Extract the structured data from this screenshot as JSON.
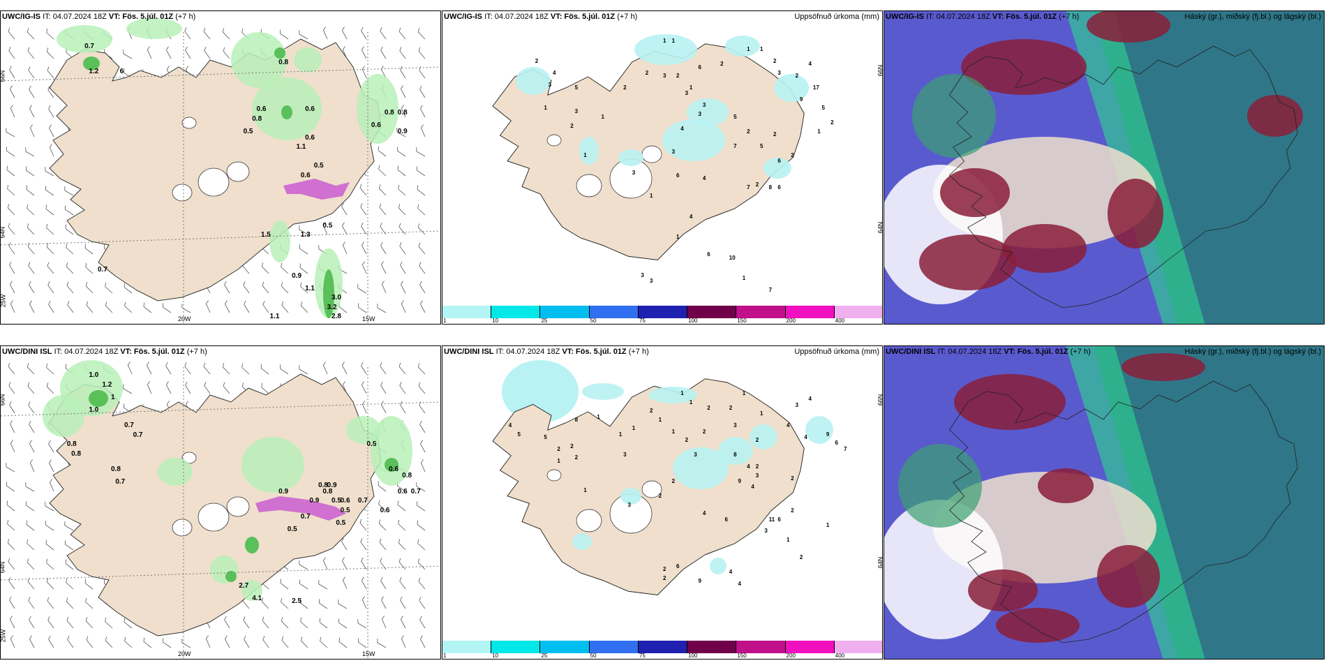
{
  "colors": {
    "land": "#efdfcc",
    "sea": "#ffffff",
    "precip_light": "#b9f0b9",
    "precip_mid": "#5ac05a",
    "precip_dark": "#0f6e2a",
    "snow": "#d070d0",
    "bar_blue": "#5a5acf",
    "cloud_red": "#8a1f3a",
    "cloud_teal": "#2a7a80",
    "cloud_green": "#2fcf8f"
  },
  "rows": [
    {
      "model": "UWC/IG-IS",
      "wind_panel": {
        "title_model": "UWC/IG-IS",
        "title_it": "IT: 04.07.2024 18Z",
        "title_vt": "VT: Fös. 5.júl. 01Z",
        "title_lead": "(+7 h)",
        "lon_labels": [
          "20W",
          "15W"
        ],
        "lat_labels": [
          "66N",
          "64N",
          "25W"
        ],
        "values": [
          {
            "t": "0.7",
            "x": 0.19,
            "y": 0.1
          },
          {
            "t": "1.2",
            "x": 0.2,
            "y": 0.18
          },
          {
            "t": "6",
            "x": 0.27,
            "y": 0.18
          },
          {
            "t": "0.8",
            "x": 0.63,
            "y": 0.15
          },
          {
            "t": "0.6",
            "x": 0.58,
            "y": 0.3
          },
          {
            "t": "0.8",
            "x": 0.57,
            "y": 0.33
          },
          {
            "t": "0.5",
            "x": 0.55,
            "y": 0.37
          },
          {
            "t": "0.6",
            "x": 0.69,
            "y": 0.3
          },
          {
            "t": "0.6",
            "x": 0.69,
            "y": 0.39
          },
          {
            "t": "1.1",
            "x": 0.67,
            "y": 0.42
          },
          {
            "t": "0.5",
            "x": 0.71,
            "y": 0.48
          },
          {
            "t": "0.6",
            "x": 0.68,
            "y": 0.51
          },
          {
            "t": "0.8",
            "x": 0.87,
            "y": 0.31
          },
          {
            "t": "0.8",
            "x": 0.9,
            "y": 0.31
          },
          {
            "t": "0.6",
            "x": 0.84,
            "y": 0.35
          },
          {
            "t": "0.9",
            "x": 0.9,
            "y": 0.37
          },
          {
            "t": "0.5",
            "x": 0.73,
            "y": 0.67
          },
          {
            "t": "1.5",
            "x": 0.59,
            "y": 0.7
          },
          {
            "t": "1.3",
            "x": 0.68,
            "y": 0.7
          },
          {
            "t": "0.7",
            "x": 0.22,
            "y": 0.81
          },
          {
            "t": "0.9",
            "x": 0.66,
            "y": 0.83
          },
          {
            "t": "1.1",
            "x": 0.69,
            "y": 0.87
          },
          {
            "t": "3.0",
            "x": 0.75,
            "y": 0.9
          },
          {
            "t": "3.2",
            "x": 0.74,
            "y": 0.93
          },
          {
            "t": "2.8",
            "x": 0.75,
            "y": 0.96
          },
          {
            "t": "1.1",
            "x": 0.61,
            "y": 0.96
          }
        ]
      },
      "precip_panel": {
        "title_model": "UWC/IG-IS",
        "title_it": "IT: 04.07.2024 18Z",
        "title_vt": "VT: Fös. 5.júl. 01Z",
        "title_lead": "(+7 h)",
        "right_title": "Uppsöfnuð úrkoma (mm)",
        "colorbar_labels": [
          "1",
          "10",
          "25",
          "50",
          "75",
          "100",
          "150",
          "200",
          "400"
        ],
        "colorbar_colors": [
          "#b3f5f5",
          "#00e8e8",
          "#00bff0",
          "#3070f0",
          "#2020b0",
          "#70004a",
          "#c0108a",
          "#f010c0",
          "#f0b0f0"
        ],
        "values": [
          {
            "t": "1",
            "x": 0.5,
            "y": 0.09
          },
          {
            "t": "1",
            "x": 0.52,
            "y": 0.09
          },
          {
            "t": "2",
            "x": 0.21,
            "y": 0.16
          },
          {
            "t": "4",
            "x": 0.25,
            "y": 0.2
          },
          {
            "t": "5",
            "x": 0.3,
            "y": 0.25
          },
          {
            "t": "3",
            "x": 0.24,
            "y": 0.24
          },
          {
            "t": "1",
            "x": 0.23,
            "y": 0.32
          },
          {
            "t": "1",
            "x": 0.36,
            "y": 0.35
          },
          {
            "t": "2",
            "x": 0.29,
            "y": 0.38
          },
          {
            "t": "3",
            "x": 0.3,
            "y": 0.33
          },
          {
            "t": "2",
            "x": 0.41,
            "y": 0.25
          },
          {
            "t": "2",
            "x": 0.46,
            "y": 0.2
          },
          {
            "t": "3",
            "x": 0.5,
            "y": 0.21
          },
          {
            "t": "2",
            "x": 0.53,
            "y": 0.21
          },
          {
            "t": "1",
            "x": 0.56,
            "y": 0.25
          },
          {
            "t": "6",
            "x": 0.58,
            "y": 0.18
          },
          {
            "t": "2",
            "x": 0.63,
            "y": 0.17
          },
          {
            "t": "1",
            "x": 0.69,
            "y": 0.12
          },
          {
            "t": "1",
            "x": 0.72,
            "y": 0.12
          },
          {
            "t": "2",
            "x": 0.75,
            "y": 0.16
          },
          {
            "t": "3",
            "x": 0.76,
            "y": 0.2
          },
          {
            "t": "2",
            "x": 0.8,
            "y": 0.21
          },
          {
            "t": "4",
            "x": 0.83,
            "y": 0.17
          },
          {
            "t": "17",
            "x": 0.84,
            "y": 0.25
          },
          {
            "t": "9",
            "x": 0.81,
            "y": 0.29
          },
          {
            "t": "5",
            "x": 0.86,
            "y": 0.32
          },
          {
            "t": "2",
            "x": 0.88,
            "y": 0.37
          },
          {
            "t": "1",
            "x": 0.85,
            "y": 0.4
          },
          {
            "t": "2",
            "x": 0.79,
            "y": 0.48
          },
          {
            "t": "6",
            "x": 0.76,
            "y": 0.5
          },
          {
            "t": "5",
            "x": 0.72,
            "y": 0.45
          },
          {
            "t": "2",
            "x": 0.75,
            "y": 0.41
          },
          {
            "t": "7",
            "x": 0.66,
            "y": 0.45
          },
          {
            "t": "5",
            "x": 0.66,
            "y": 0.35
          },
          {
            "t": "2",
            "x": 0.69,
            "y": 0.4
          },
          {
            "t": "3",
            "x": 0.58,
            "y": 0.34
          },
          {
            "t": "3",
            "x": 0.55,
            "y": 0.27
          },
          {
            "t": "3",
            "x": 0.59,
            "y": 0.31
          },
          {
            "t": "3",
            "x": 0.52,
            "y": 0.47
          },
          {
            "t": "4",
            "x": 0.54,
            "y": 0.39
          },
          {
            "t": "6",
            "x": 0.53,
            "y": 0.55
          },
          {
            "t": "4",
            "x": 0.59,
            "y": 0.56
          },
          {
            "t": "7",
            "x": 0.69,
            "y": 0.59
          },
          {
            "t": "6",
            "x": 0.76,
            "y": 0.59
          },
          {
            "t": "8",
            "x": 0.74,
            "y": 0.59
          },
          {
            "t": "2",
            "x": 0.71,
            "y": 0.58
          },
          {
            "t": "1",
            "x": 0.32,
            "y": 0.48
          },
          {
            "t": "3",
            "x": 0.43,
            "y": 0.54
          },
          {
            "t": "1",
            "x": 0.47,
            "y": 0.62
          },
          {
            "t": "4",
            "x": 0.56,
            "y": 0.69
          },
          {
            "t": "1",
            "x": 0.53,
            "y": 0.76
          },
          {
            "t": "6",
            "x": 0.6,
            "y": 0.82
          },
          {
            "t": "10",
            "x": 0.65,
            "y": 0.83
          },
          {
            "t": "3",
            "x": 0.45,
            "y": 0.89
          },
          {
            "t": "3",
            "x": 0.47,
            "y": 0.91
          },
          {
            "t": "1",
            "x": 0.68,
            "y": 0.9
          },
          {
            "t": "7",
            "x": 0.74,
            "y": 0.94
          }
        ]
      },
      "cloud_panel": {
        "title_model": "UWC/IG-IS",
        "title_it": "IT: 04.07.2024 18Z",
        "title_vt": "VT: Fös. 5.júl. 01Z",
        "title_lead": "(+7 h)",
        "right_title": "Háský (gr.), miðský (fj.bl.) og lágský (bl.)"
      }
    },
    {
      "model": "UWC/DINI ISL",
      "wind_panel": {
        "title_model": "UWC/DINI ISL",
        "title_it": "IT: 04.07.2024 18Z",
        "title_vt": "VT: Fös. 5.júl. 01Z",
        "title_lead": "(+7 h)",
        "lon_labels": [
          "20W",
          "15W"
        ],
        "lat_labels": [
          "66N",
          "64N",
          "25W"
        ],
        "values": [
          {
            "t": "1.0",
            "x": 0.2,
            "y": 0.08
          },
          {
            "t": "1.2",
            "x": 0.23,
            "y": 0.11
          },
          {
            "t": "1",
            "x": 0.25,
            "y": 0.15
          },
          {
            "t": "1.0",
            "x": 0.2,
            "y": 0.19
          },
          {
            "t": "0.7",
            "x": 0.28,
            "y": 0.24
          },
          {
            "t": "0.7",
            "x": 0.3,
            "y": 0.27
          },
          {
            "t": "0.8",
            "x": 0.15,
            "y": 0.3
          },
          {
            "t": "0.8",
            "x": 0.16,
            "y": 0.33
          },
          {
            "t": "0.8",
            "x": 0.25,
            "y": 0.38
          },
          {
            "t": "0.7",
            "x": 0.26,
            "y": 0.42
          },
          {
            "t": "0.5",
            "x": 0.83,
            "y": 0.3
          },
          {
            "t": "0.6",
            "x": 0.88,
            "y": 0.38
          },
          {
            "t": "0.8",
            "x": 0.91,
            "y": 0.4
          },
          {
            "t": "0.7",
            "x": 0.93,
            "y": 0.45
          },
          {
            "t": "0.6",
            "x": 0.9,
            "y": 0.45
          },
          {
            "t": "0.9",
            "x": 0.63,
            "y": 0.45
          },
          {
            "t": "0.8",
            "x": 0.72,
            "y": 0.43
          },
          {
            "t": "0.9",
            "x": 0.74,
            "y": 0.43
          },
          {
            "t": "0.8",
            "x": 0.73,
            "y": 0.45
          },
          {
            "t": "0.9",
            "x": 0.7,
            "y": 0.48
          },
          {
            "t": "0.5",
            "x": 0.75,
            "y": 0.48
          },
          {
            "t": "0.6",
            "x": 0.77,
            "y": 0.48
          },
          {
            "t": "0.5",
            "x": 0.77,
            "y": 0.51
          },
          {
            "t": "0.7",
            "x": 0.81,
            "y": 0.48
          },
          {
            "t": "0.6",
            "x": 0.86,
            "y": 0.51
          },
          {
            "t": "0.5",
            "x": 0.76,
            "y": 0.55
          },
          {
            "t": "0.7",
            "x": 0.68,
            "y": 0.53
          },
          {
            "t": "0.5",
            "x": 0.65,
            "y": 0.57
          },
          {
            "t": "2.7",
            "x": 0.54,
            "y": 0.75
          },
          {
            "t": "4.1",
            "x": 0.57,
            "y": 0.79
          },
          {
            "t": "2.5",
            "x": 0.66,
            "y": 0.8
          }
        ]
      },
      "precip_panel": {
        "title_model": "UWC/DINI ISL",
        "title_it": "IT: 04.07.2024 18Z",
        "title_vt": "VT: Fös. 5.júl. 01Z",
        "title_lead": "(+7 h)",
        "right_title": "Uppsöfnuð úrkoma (mm)",
        "colorbar_labels": [
          "1",
          "10",
          "25",
          "50",
          "75",
          "100",
          "150",
          "200",
          "400"
        ],
        "colorbar_colors": [
          "#b3f5f5",
          "#00e8e8",
          "#00bff0",
          "#3070f0",
          "#2020b0",
          "#70004a",
          "#c0108a",
          "#f010c0",
          "#f0b0f0"
        ],
        "values": [
          {
            "t": "4",
            "x": 0.15,
            "y": 0.26
          },
          {
            "t": "5",
            "x": 0.17,
            "y": 0.29
          },
          {
            "t": "5",
            "x": 0.23,
            "y": 0.3
          },
          {
            "t": "8",
            "x": 0.3,
            "y": 0.24
          },
          {
            "t": "2",
            "x": 0.26,
            "y": 0.34
          },
          {
            "t": "2",
            "x": 0.29,
            "y": 0.33
          },
          {
            "t": "1",
            "x": 0.26,
            "y": 0.38
          },
          {
            "t": "2",
            "x": 0.3,
            "y": 0.37
          },
          {
            "t": "1",
            "x": 0.35,
            "y": 0.23
          },
          {
            "t": "3",
            "x": 0.41,
            "y": 0.36
          },
          {
            "t": "1",
            "x": 0.4,
            "y": 0.29
          },
          {
            "t": "1",
            "x": 0.43,
            "y": 0.27
          },
          {
            "t": "2",
            "x": 0.47,
            "y": 0.21
          },
          {
            "t": "1",
            "x": 0.49,
            "y": 0.24
          },
          {
            "t": "1",
            "x": 0.52,
            "y": 0.28
          },
          {
            "t": "3",
            "x": 0.57,
            "y": 0.36
          },
          {
            "t": "2",
            "x": 0.55,
            "y": 0.31
          },
          {
            "t": "2",
            "x": 0.59,
            "y": 0.28
          },
          {
            "t": "2",
            "x": 0.6,
            "y": 0.2
          },
          {
            "t": "1",
            "x": 0.56,
            "y": 0.18
          },
          {
            "t": "1",
            "x": 0.54,
            "y": 0.15
          },
          {
            "t": "3",
            "x": 0.66,
            "y": 0.26
          },
          {
            "t": "2",
            "x": 0.65,
            "y": 0.2
          },
          {
            "t": "1",
            "x": 0.68,
            "y": 0.15
          },
          {
            "t": "1",
            "x": 0.72,
            "y": 0.22
          },
          {
            "t": "3",
            "x": 0.8,
            "y": 0.19
          },
          {
            "t": "4",
            "x": 0.83,
            "y": 0.17
          },
          {
            "t": "4",
            "x": 0.78,
            "y": 0.26
          },
          {
            "t": "4",
            "x": 0.82,
            "y": 0.3
          },
          {
            "t": "2",
            "x": 0.71,
            "y": 0.31
          },
          {
            "t": "9",
            "x": 0.87,
            "y": 0.29
          },
          {
            "t": "6",
            "x": 0.89,
            "y": 0.32
          },
          {
            "t": "7",
            "x": 0.91,
            "y": 0.34
          },
          {
            "t": "8",
            "x": 0.66,
            "y": 0.36
          },
          {
            "t": "4",
            "x": 0.69,
            "y": 0.4
          },
          {
            "t": "2",
            "x": 0.71,
            "y": 0.4
          },
          {
            "t": "2",
            "x": 0.79,
            "y": 0.44
          },
          {
            "t": "9",
            "x": 0.67,
            "y": 0.45
          },
          {
            "t": "4",
            "x": 0.7,
            "y": 0.47
          },
          {
            "t": "3",
            "x": 0.71,
            "y": 0.43
          },
          {
            "t": "2",
            "x": 0.52,
            "y": 0.45
          },
          {
            "t": "2",
            "x": 0.49,
            "y": 0.5
          },
          {
            "t": "1",
            "x": 0.32,
            "y": 0.48
          },
          {
            "t": "3",
            "x": 0.42,
            "y": 0.53
          },
          {
            "t": "4",
            "x": 0.59,
            "y": 0.56
          },
          {
            "t": "6",
            "x": 0.64,
            "y": 0.58
          },
          {
            "t": "11",
            "x": 0.74,
            "y": 0.58
          },
          {
            "t": "6",
            "x": 0.76,
            "y": 0.58
          },
          {
            "t": "2",
            "x": 0.79,
            "y": 0.55
          },
          {
            "t": "1",
            "x": 0.87,
            "y": 0.6
          },
          {
            "t": "2",
            "x": 0.81,
            "y": 0.71
          },
          {
            "t": "3",
            "x": 0.73,
            "y": 0.62
          },
          {
            "t": "1",
            "x": 0.78,
            "y": 0.65
          },
          {
            "t": "2",
            "x": 0.5,
            "y": 0.75
          },
          {
            "t": "6",
            "x": 0.53,
            "y": 0.74
          },
          {
            "t": "2",
            "x": 0.5,
            "y": 0.78
          },
          {
            "t": "9",
            "x": 0.58,
            "y": 0.79
          },
          {
            "t": "4",
            "x": 0.65,
            "y": 0.76
          },
          {
            "t": "4",
            "x": 0.67,
            "y": 0.8
          }
        ]
      },
      "cloud_panel": {
        "title_model": "UWC/DINI ISL",
        "title_it": "IT: 04.07.2024 18Z",
        "title_vt": "VT: Fös. 5.júl. 01Z",
        "title_lead": "(+7 h)",
        "right_title": "Háský (gr.), miðský (fj.bl.) og lágský (bl.)"
      }
    }
  ]
}
